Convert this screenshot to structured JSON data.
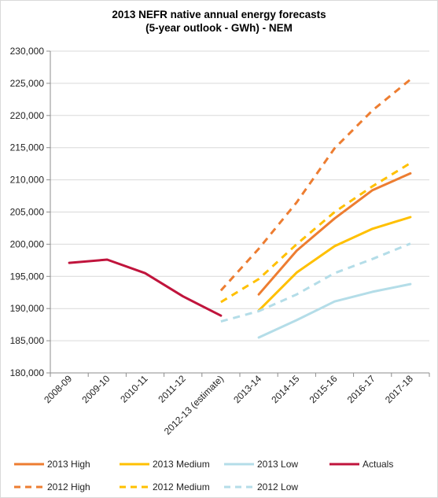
{
  "chart_data": {
    "type": "line",
    "title": "2013 NEFR native annual energy forecasts",
    "subtitle": "(5-year outlook - GWh) - NEM",
    "xlabel": "",
    "ylabel": "",
    "categories": [
      "2008-09",
      "2009-10",
      "2010-11",
      "2011-12",
      "2012-13 (estimate)",
      "2013-14",
      "2014-15",
      "2015-16",
      "2016-17",
      "2017-18"
    ],
    "ylim": [
      180000,
      230000
    ],
    "ytick_step": 5000,
    "ytick_labels": [
      "180,000",
      "185,000",
      "190,000",
      "195,000",
      "200,000",
      "205,000",
      "210,000",
      "215,000",
      "220,000",
      "225,000",
      "230,000"
    ],
    "grid": "horizontal",
    "legend_position": "bottom",
    "series": [
      {
        "name": "2013 High",
        "color": "#ed7d31",
        "dashed": false,
        "values": [
          null,
          null,
          null,
          null,
          null,
          192200,
          199000,
          204000,
          208400,
          211000
        ]
      },
      {
        "name": "2013 Medium",
        "color": "#ffc000",
        "dashed": false,
        "values": [
          null,
          null,
          null,
          null,
          null,
          189700,
          195600,
          199700,
          202400,
          204200
        ]
      },
      {
        "name": "2013 Low",
        "color": "#b4dde8",
        "dashed": false,
        "values": [
          null,
          null,
          null,
          null,
          null,
          185500,
          188200,
          191100,
          192600,
          193800
        ]
      },
      {
        "name": "Actuals",
        "color": "#c0143c",
        "dashed": false,
        "values": [
          197100,
          197600,
          195500,
          191900,
          188900,
          null,
          null,
          null,
          null,
          null
        ]
      },
      {
        "name": "2012 High",
        "color": "#ed7d31",
        "dashed": true,
        "values": [
          null,
          null,
          null,
          null,
          192800,
          199300,
          206500,
          214900,
          220800,
          225600
        ]
      },
      {
        "name": "2012 Medium",
        "color": "#ffc000",
        "dashed": true,
        "values": [
          null,
          null,
          null,
          null,
          191000,
          194600,
          200000,
          205000,
          209000,
          212600
        ]
      },
      {
        "name": "2012 Low",
        "color": "#b4dde8",
        "dashed": true,
        "values": [
          null,
          null,
          null,
          null,
          188000,
          189600,
          192200,
          195500,
          197700,
          200100
        ]
      }
    ]
  }
}
